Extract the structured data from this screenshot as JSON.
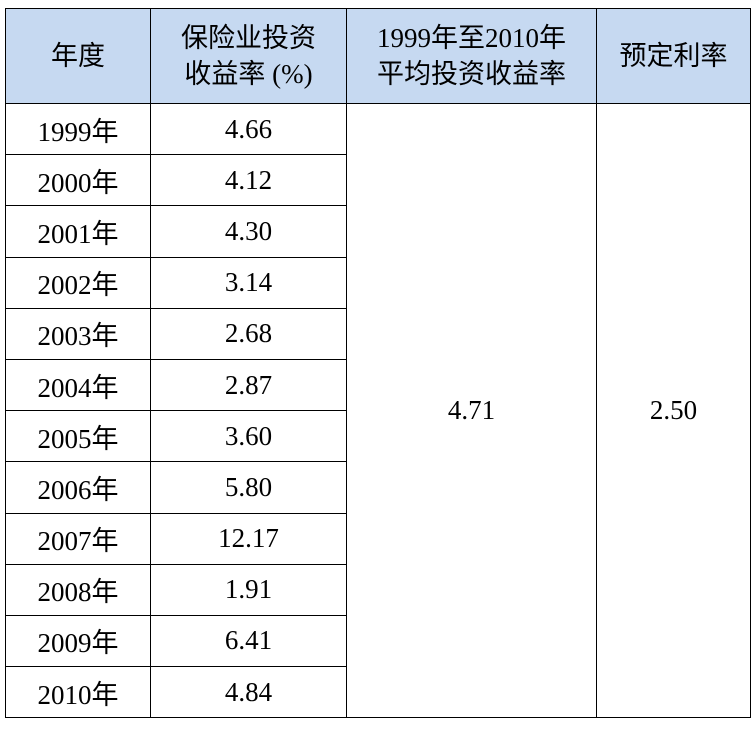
{
  "table": {
    "headers": [
      [
        "年度"
      ],
      [
        "保险业投资",
        "收益率 (%)"
      ],
      [
        "1999年至2010年",
        "平均投资收益率"
      ],
      [
        "预定利率"
      ]
    ],
    "rows": [
      [
        "1999年",
        "4.66"
      ],
      [
        "2000年",
        "4.12"
      ],
      [
        "2001年",
        "4.30"
      ],
      [
        "2002年",
        "3.14"
      ],
      [
        "2003年",
        "2.68"
      ],
      [
        "2004年",
        "2.87"
      ],
      [
        "2005年",
        "3.60"
      ],
      [
        "2006年",
        "5.80"
      ],
      [
        "2007年",
        "12.17"
      ],
      [
        "2008年",
        "1.91"
      ],
      [
        "2009年",
        "6.41"
      ],
      [
        "2010年",
        "4.84"
      ]
    ],
    "average": "4.71",
    "preset_rate": "2.50"
  }
}
